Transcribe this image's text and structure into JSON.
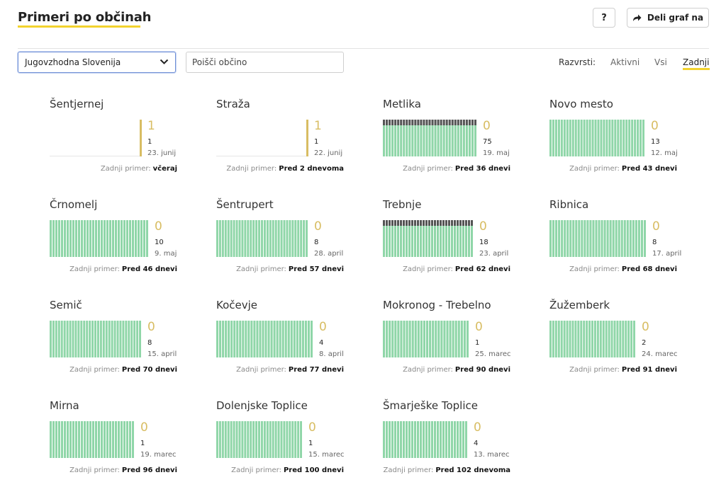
{
  "header": {
    "title": "Primeri po občinah",
    "help_label": "?",
    "share_label": "Deli graf na"
  },
  "filters": {
    "region_selected": "Jugovzhodna Slovenija",
    "search_placeholder": "Poišči občino",
    "sort_label": "Razvrsti:",
    "sort_options": [
      "Aktivni",
      "Vsi",
      "Zadnji"
    ],
    "sort_active": "Zadnji"
  },
  "colors": {
    "accent": "#f2d22e",
    "cases_bar": "#8fd6a8",
    "active_bar": "#d8bd63",
    "deceased_bar": "#555555"
  },
  "chart_data": {
    "type": "bar",
    "footer_label": "Zadnji primer:",
    "municipalities": [
      {
        "name": "Šentjernej",
        "active": "1",
        "total": "1",
        "date": "23. junij",
        "last": "včeraj"
      },
      {
        "name": "Straža",
        "active": "1",
        "total": "1",
        "date": "22. junij",
        "last": "Pred 2 dnevoma"
      },
      {
        "name": "Metlika",
        "active": "0",
        "total": "75",
        "date": "19. maj",
        "last": "Pred 36 dnevi"
      },
      {
        "name": "Novo mesto",
        "active": "0",
        "total": "13",
        "date": "12. maj",
        "last": "Pred 43 dnevi"
      },
      {
        "name": "Črnomelj",
        "active": "0",
        "total": "10",
        "date": "9. maj",
        "last": "Pred 46 dnevi"
      },
      {
        "name": "Šentrupert",
        "active": "0",
        "total": "8",
        "date": "28. april",
        "last": "Pred 57 dnevi"
      },
      {
        "name": "Trebnje",
        "active": "0",
        "total": "18",
        "date": "23. april",
        "last": "Pred 62 dnevi"
      },
      {
        "name": "Ribnica",
        "active": "0",
        "total": "8",
        "date": "17. april",
        "last": "Pred 68 dnevi"
      },
      {
        "name": "Semič",
        "active": "0",
        "total": "8",
        "date": "15. april",
        "last": "Pred 70 dnevi"
      },
      {
        "name": "Kočevje",
        "active": "0",
        "total": "4",
        "date": "8. april",
        "last": "Pred 77 dnevi"
      },
      {
        "name": "Mokronog - Trebelno",
        "active": "0",
        "total": "1",
        "date": "25. marec",
        "last": "Pred 90 dnevi"
      },
      {
        "name": "Žužemberk",
        "active": "0",
        "total": "2",
        "date": "24. marec",
        "last": "Pred 91 dnevi"
      },
      {
        "name": "Mirna",
        "active": "0",
        "total": "1",
        "date": "19. marec",
        "last": "Pred 96 dnevi"
      },
      {
        "name": "Dolenjske Toplice",
        "active": "0",
        "total": "1",
        "date": "15. marec",
        "last": "Pred 100 dnevi"
      },
      {
        "name": "Šmarješke Toplice",
        "active": "0",
        "total": "4",
        "date": "13. marec",
        "last": "Pred 102 dnevoma"
      }
    ]
  }
}
